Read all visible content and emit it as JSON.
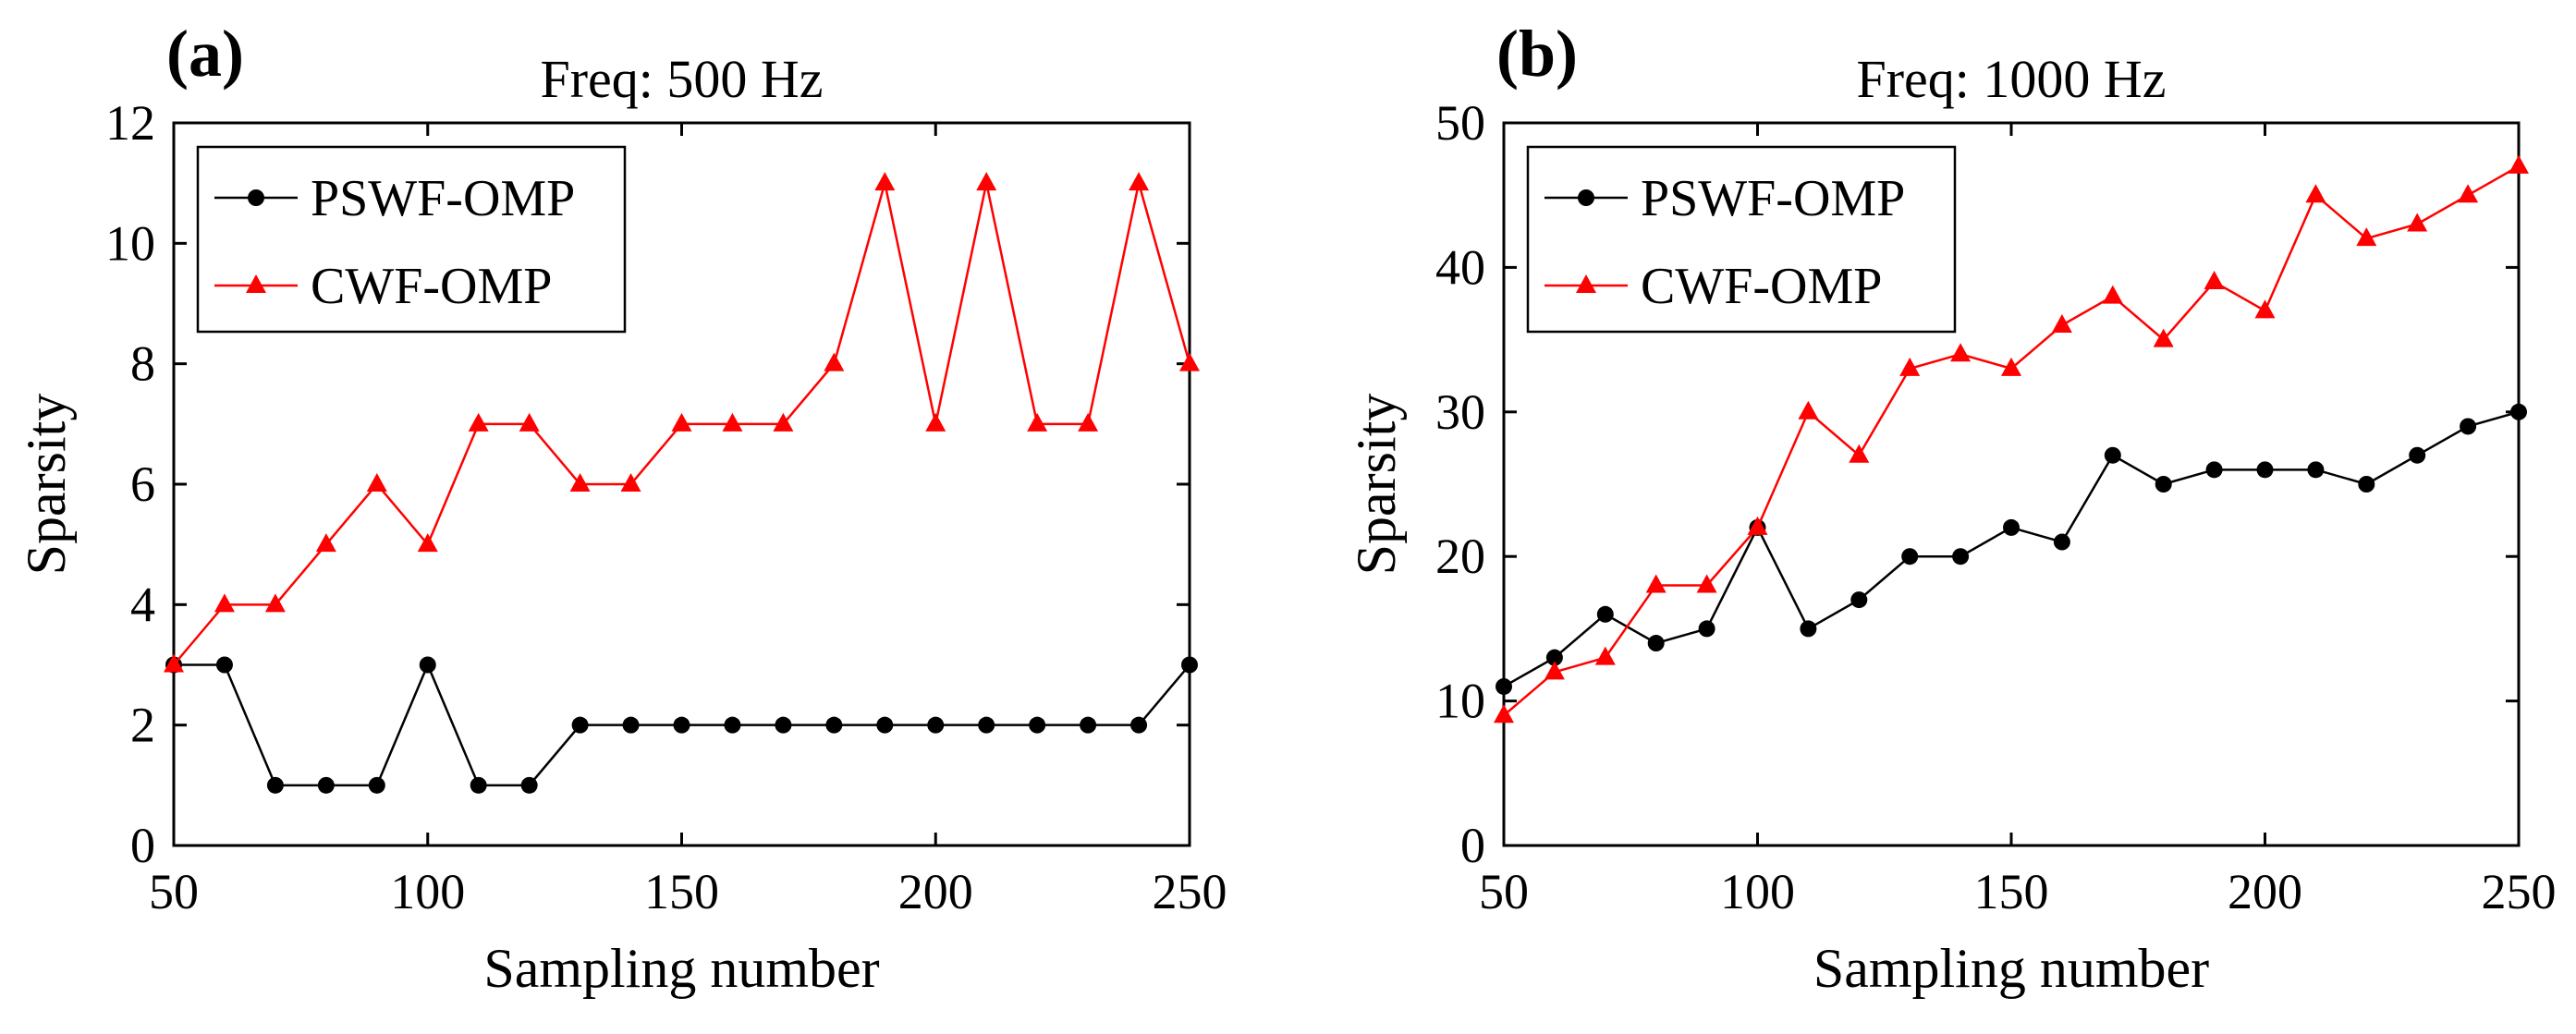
{
  "chart_data": [
    {
      "type": "line",
      "panel_label": "(a)",
      "title": "Freq: 500 Hz",
      "xlabel": "Sampling number",
      "ylabel": "Sparsity",
      "xlim": [
        50,
        250
      ],
      "ylim": [
        0,
        12
      ],
      "xticks": [
        "50",
        "100",
        "150",
        "200",
        "250"
      ],
      "yticks": [
        "0",
        "2",
        "4",
        "6",
        "8",
        "10",
        "12"
      ],
      "legend_position": "top-left",
      "x": [
        50,
        60,
        70,
        80,
        90,
        100,
        110,
        120,
        130,
        140,
        150,
        160,
        170,
        180,
        190,
        200,
        210,
        220,
        230,
        240,
        250
      ],
      "series": [
        {
          "name": "PSWF-OMP",
          "color": "#000000",
          "marker": "circle",
          "values": [
            3,
            3,
            1,
            1,
            1,
            3,
            1,
            1,
            2,
            2,
            2,
            2,
            2,
            2,
            2,
            2,
            2,
            2,
            2,
            2,
            3
          ]
        },
        {
          "name": "CWF-OMP",
          "color": "#ff0000",
          "marker": "triangle",
          "values": [
            3,
            4,
            4,
            5,
            6,
            5,
            7,
            7,
            6,
            6,
            7,
            7,
            7,
            8,
            11,
            7,
            11,
            7,
            7,
            11,
            8
          ]
        }
      ]
    },
    {
      "type": "line",
      "panel_label": "(b)",
      "title": "Freq: 1000 Hz",
      "xlabel": "Sampling number",
      "ylabel": "Sparsity",
      "xlim": [
        50,
        250
      ],
      "ylim": [
        0,
        50
      ],
      "xticks": [
        "50",
        "100",
        "150",
        "200",
        "250"
      ],
      "yticks": [
        "0",
        "10",
        "20",
        "30",
        "40",
        "50"
      ],
      "legend_position": "top-left",
      "x": [
        50,
        60,
        70,
        80,
        90,
        100,
        110,
        120,
        130,
        140,
        150,
        160,
        170,
        180,
        190,
        200,
        210,
        220,
        230,
        240,
        250
      ],
      "series": [
        {
          "name": "PSWF-OMP",
          "color": "#000000",
          "marker": "circle",
          "values": [
            11,
            13,
            16,
            14,
            15,
            22,
            15,
            17,
            20,
            20,
            22,
            21,
            27,
            25,
            26,
            26,
            26,
            25,
            27,
            29,
            30
          ]
        },
        {
          "name": "CWF-OMP",
          "color": "#ff0000",
          "marker": "triangle",
          "values": [
            9,
            12,
            13,
            18,
            18,
            22,
            30,
            27,
            33,
            34,
            33,
            36,
            38,
            35,
            39,
            37,
            45,
            42,
            43,
            45,
            47
          ]
        }
      ]
    }
  ]
}
